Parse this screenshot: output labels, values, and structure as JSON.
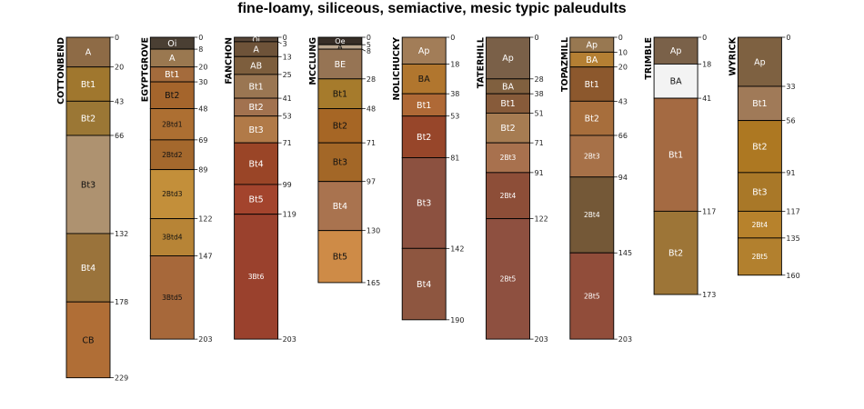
{
  "chart_data": {
    "type": "soil-profile-sketch",
    "title": "fine-loamy, siliceous, semiactive, mesic typic paleudults",
    "depth_units": "cm",
    "profiles": [
      {
        "name": "COTTONBEND",
        "horizons": [
          {
            "name": "A",
            "top": 0,
            "bottom": 20,
            "color": "#8E6B46",
            "label_color": "#FFFFFF"
          },
          {
            "name": "Bt1",
            "top": 20,
            "bottom": 43,
            "color": "#A0772E",
            "label_color": "#FFFFFF"
          },
          {
            "name": "Bt2",
            "top": 43,
            "bottom": 66,
            "color": "#9B7735",
            "label_color": "#FFFFFF"
          },
          {
            "name": "Bt3",
            "top": 66,
            "bottom": 132,
            "color": "#AE9270",
            "label_color": "#111111"
          },
          {
            "name": "Bt4",
            "top": 132,
            "bottom": 178,
            "color": "#9A733B",
            "label_color": "#FFFFFF"
          },
          {
            "name": "CB",
            "top": 178,
            "bottom": 229,
            "color": "#B06E36",
            "label_color": "#111111"
          }
        ],
        "depth_ticks": [
          0,
          20,
          43,
          66,
          132,
          178,
          229
        ]
      },
      {
        "name": "EGYPTGROVE",
        "horizons": [
          {
            "name": "Oi",
            "top": 0,
            "bottom": 8,
            "color": "#4A3F33",
            "label_color": "#FFFFFF"
          },
          {
            "name": "A",
            "top": 8,
            "bottom": 20,
            "color": "#9A7850",
            "label_color": "#FFFFFF"
          },
          {
            "name": "Bt1",
            "top": 20,
            "bottom": 30,
            "color": "#A46B3C",
            "label_color": "#FFFFFF"
          },
          {
            "name": "Bt2",
            "top": 30,
            "bottom": 48,
            "color": "#A5652C",
            "label_color": "#111111"
          },
          {
            "name": "2Btd1",
            "top": 48,
            "bottom": 69,
            "color": "#AD6F32",
            "label_color": "#111111"
          },
          {
            "name": "2Btd2",
            "top": 69,
            "bottom": 89,
            "color": "#A4682D",
            "label_color": "#111111"
          },
          {
            "name": "2Btd3",
            "top": 89,
            "bottom": 122,
            "color": "#C38F3A",
            "label_color": "#111111"
          },
          {
            "name": "3Btd4",
            "top": 122,
            "bottom": 147,
            "color": "#B78436",
            "label_color": "#111111"
          },
          {
            "name": "3Btd5",
            "top": 147,
            "bottom": 203,
            "color": "#A7683A",
            "label_color": "#111111"
          }
        ],
        "depth_ticks": [
          0,
          8,
          20,
          30,
          48,
          69,
          89,
          122,
          147,
          203
        ]
      },
      {
        "name": "FANCHON",
        "horizons": [
          {
            "name": "Oi",
            "top": 0,
            "bottom": 3,
            "color": "#574638",
            "label_color": "#FFFFFF"
          },
          {
            "name": "A",
            "top": 3,
            "bottom": 13,
            "color": "#6E5339",
            "label_color": "#FFFFFF"
          },
          {
            "name": "AB",
            "top": 13,
            "bottom": 25,
            "color": "#7D5E3D",
            "label_color": "#FFFFFF"
          },
          {
            "name": "Bt1",
            "top": 25,
            "bottom": 41,
            "color": "#9A7652",
            "label_color": "#FFFFFF"
          },
          {
            "name": "Bt2",
            "top": 41,
            "bottom": 53,
            "color": "#A2724F",
            "label_color": "#FFFFFF"
          },
          {
            "name": "Bt3",
            "top": 53,
            "bottom": 71,
            "color": "#B17A48",
            "label_color": "#FFFFFF"
          },
          {
            "name": "Bt4",
            "top": 71,
            "bottom": 99,
            "color": "#9A4527",
            "label_color": "#FFFFFF"
          },
          {
            "name": "Bt5",
            "top": 99,
            "bottom": 119,
            "color": "#A3442D",
            "label_color": "#FFFFFF"
          },
          {
            "name": "3Bt6",
            "top": 119,
            "bottom": 203,
            "color": "#9A412D",
            "label_color": "#FFFFFF"
          }
        ],
        "depth_ticks": [
          0,
          3,
          13,
          25,
          41,
          53,
          71,
          99,
          119,
          203
        ]
      },
      {
        "name": "MCCLUNG",
        "horizons": [
          {
            "name": "Oe",
            "top": 0,
            "bottom": 5,
            "color": "#372E27",
            "label_color": "#FFFFFF"
          },
          {
            "name": "A",
            "top": 5,
            "bottom": 8,
            "color": "#B9A58D",
            "label_color": "#111111"
          },
          {
            "name": "BE",
            "top": 8,
            "bottom": 28,
            "color": "#967454",
            "label_color": "#FFFFFF"
          },
          {
            "name": "Bt1",
            "top": 28,
            "bottom": 48,
            "color": "#A67B2C",
            "label_color": "#111111"
          },
          {
            "name": "Bt2",
            "top": 48,
            "bottom": 71,
            "color": "#A66625",
            "label_color": "#111111"
          },
          {
            "name": "Bt3",
            "top": 71,
            "bottom": 97,
            "color": "#A36727",
            "label_color": "#111111"
          },
          {
            "name": "Bt4",
            "top": 97,
            "bottom": 130,
            "color": "#A9734F",
            "label_color": "#FFFFFF"
          },
          {
            "name": "Bt5",
            "top": 130,
            "bottom": 165,
            "color": "#CE8B47",
            "label_color": "#111111"
          }
        ],
        "depth_ticks": [
          0,
          5,
          8,
          28,
          48,
          71,
          97,
          130,
          165
        ]
      },
      {
        "name": "NOLICHUCKY",
        "horizons": [
          {
            "name": "Ap",
            "top": 0,
            "bottom": 18,
            "color": "#A27D58",
            "label_color": "#FFFFFF"
          },
          {
            "name": "BA",
            "top": 18,
            "bottom": 38,
            "color": "#B1762E",
            "label_color": "#111111"
          },
          {
            "name": "Bt1",
            "top": 38,
            "bottom": 53,
            "color": "#AF6936",
            "label_color": "#FFFFFF"
          },
          {
            "name": "Bt2",
            "top": 53,
            "bottom": 81,
            "color": "#97462A",
            "label_color": "#FFFFFF"
          },
          {
            "name": "Bt3",
            "top": 81,
            "bottom": 142,
            "color": "#8C5140",
            "label_color": "#FFFFFF"
          },
          {
            "name": "Bt4",
            "top": 142,
            "bottom": 190,
            "color": "#8E5640",
            "label_color": "#FFFFFF"
          }
        ],
        "depth_ticks": [
          0,
          18,
          38,
          53,
          81,
          142,
          190
        ]
      },
      {
        "name": "TATERHILL",
        "horizons": [
          {
            "name": "Ap",
            "top": 0,
            "bottom": 28,
            "color": "#7A6048",
            "label_color": "#FFFFFF"
          },
          {
            "name": "BA",
            "top": 28,
            "bottom": 38,
            "color": "#80603F",
            "label_color": "#FFFFFF"
          },
          {
            "name": "Bt1",
            "top": 38,
            "bottom": 51,
            "color": "#875B3A",
            "label_color": "#FFFFFF"
          },
          {
            "name": "Bt2",
            "top": 51,
            "bottom": 71,
            "color": "#A67C52",
            "label_color": "#FFFFFF"
          },
          {
            "name": "2Bt3",
            "top": 71,
            "bottom": 91,
            "color": "#A8714E",
            "label_color": "#FFFFFF"
          },
          {
            "name": "2Bt4",
            "top": 91,
            "bottom": 122,
            "color": "#8D4E38",
            "label_color": "#FFFFFF"
          },
          {
            "name": "2Bt5",
            "top": 122,
            "bottom": 203,
            "color": "#8E5040",
            "label_color": "#FFFFFF"
          }
        ],
        "depth_ticks": [
          0,
          28,
          38,
          51,
          71,
          91,
          122,
          203
        ]
      },
      {
        "name": "TOPAZMILL",
        "horizons": [
          {
            "name": "Ap",
            "top": 0,
            "bottom": 10,
            "color": "#987851",
            "label_color": "#FFFFFF"
          },
          {
            "name": "BA",
            "top": 10,
            "bottom": 20,
            "color": "#B47F33",
            "label_color": "#FFFFFF"
          },
          {
            "name": "Bt1",
            "top": 20,
            "bottom": 43,
            "color": "#8C582D",
            "label_color": "#FFFFFF"
          },
          {
            "name": "Bt2",
            "top": 43,
            "bottom": 66,
            "color": "#A76E3C",
            "label_color": "#FFFFFF"
          },
          {
            "name": "2Bt3",
            "top": 66,
            "bottom": 94,
            "color": "#A77148",
            "label_color": "#FFFFFF"
          },
          {
            "name": "2Bt4",
            "top": 94,
            "bottom": 145,
            "color": "#745837",
            "label_color": "#FFFFFF"
          },
          {
            "name": "2Bt5",
            "top": 145,
            "bottom": 203,
            "color": "#914D3A",
            "label_color": "#FFFFFF"
          }
        ],
        "depth_ticks": [
          0,
          10,
          20,
          43,
          66,
          94,
          145,
          203
        ]
      },
      {
        "name": "TRIMBLE",
        "horizons": [
          {
            "name": "Ap",
            "top": 0,
            "bottom": 18,
            "color": "#7A6149",
            "label_color": "#FFFFFF"
          },
          {
            "name": "BA",
            "top": 18,
            "bottom": 41,
            "color": "#F3F3F3",
            "label_color": "#111111"
          },
          {
            "name": "Bt1",
            "top": 41,
            "bottom": 117,
            "color": "#A46A42",
            "label_color": "#FFFFFF"
          },
          {
            "name": "Bt2",
            "top": 117,
            "bottom": 173,
            "color": "#9D7537",
            "label_color": "#FFFFFF"
          }
        ],
        "depth_ticks": [
          0,
          18,
          41,
          117,
          173
        ]
      },
      {
        "name": "WYRICK",
        "horizons": [
          {
            "name": "Ap",
            "top": 0,
            "bottom": 33,
            "color": "#7E6141",
            "label_color": "#FFFFFF"
          },
          {
            "name": "Bt1",
            "top": 33,
            "bottom": 56,
            "color": "#A07A58",
            "label_color": "#FFFFFF"
          },
          {
            "name": "Bt2",
            "top": 56,
            "bottom": 91,
            "color": "#AD7822",
            "label_color": "#FFFFFF"
          },
          {
            "name": "Bt3",
            "top": 91,
            "bottom": 117,
            "color": "#A97828",
            "label_color": "#FFFFFF"
          },
          {
            "name": "2Bt4",
            "top": 117,
            "bottom": 135,
            "color": "#B7822C",
            "label_color": "#FFFFFF"
          },
          {
            "name": "2Bt5",
            "top": 135,
            "bottom": 160,
            "color": "#B2802E",
            "label_color": "#FFFFFF"
          }
        ],
        "depth_ticks": [
          0,
          33,
          56,
          91,
          117,
          135,
          160
        ]
      }
    ]
  }
}
